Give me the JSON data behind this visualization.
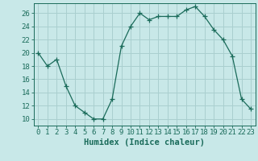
{
  "x": [
    0,
    1,
    2,
    3,
    4,
    5,
    6,
    7,
    8,
    9,
    10,
    11,
    12,
    13,
    14,
    15,
    16,
    17,
    18,
    19,
    20,
    21,
    22,
    23
  ],
  "y": [
    20,
    18,
    19,
    15,
    12,
    11,
    10,
    10,
    13,
    21,
    24,
    26,
    25,
    25.5,
    25.5,
    25.5,
    26.5,
    27,
    25.5,
    23.5,
    22,
    19.5,
    13,
    11.5
  ],
  "line_color": "#1a6b5a",
  "marker": "+",
  "marker_color": "#1a6b5a",
  "bg_color": "#c8e8e8",
  "grid_color": "#aacfcf",
  "xlabel": "Humidex (Indice chaleur)",
  "xlim": [
    -0.5,
    23.5
  ],
  "ylim": [
    9,
    27.5
  ],
  "yticks": [
    10,
    12,
    14,
    16,
    18,
    20,
    22,
    24,
    26
  ],
  "xticks": [
    0,
    1,
    2,
    3,
    4,
    5,
    6,
    7,
    8,
    9,
    10,
    11,
    12,
    13,
    14,
    15,
    16,
    17,
    18,
    19,
    20,
    21,
    22,
    23
  ],
  "tick_fontsize": 6.5,
  "xlabel_fontsize": 7.5
}
